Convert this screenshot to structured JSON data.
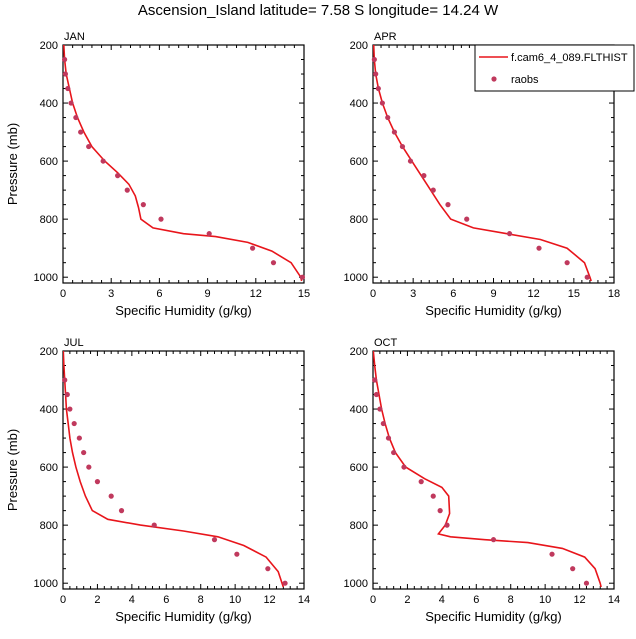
{
  "title": "Ascension_Island  latitude= 7.58 S longitude= 14.24 W",
  "colors": {
    "model": "#e8151b",
    "obs": "#c0395d",
    "axis": "#000000"
  },
  "legend": {
    "model_label": "f.cam6_4_089.FLTHIST",
    "obs_label": "raobs"
  },
  "chart_data": [
    {
      "type": "line",
      "panel": "JAN",
      "xlabel": "Specific Humidity (g/kg)",
      "ylabel": "Pressure (mb)",
      "xlim": [
        0,
        15
      ],
      "xticks": [
        0,
        3,
        6,
        9,
        12,
        15
      ],
      "ylim": [
        200,
        1020
      ],
      "yticks": [
        200,
        400,
        600,
        800,
        1000
      ],
      "y_inverted": true,
      "series": [
        {
          "name": "f.cam6_4_089.FLTHIST",
          "kind": "line",
          "points": [
            [
              0.05,
              200
            ],
            [
              0.1,
              250
            ],
            [
              0.2,
              300
            ],
            [
              0.4,
              350
            ],
            [
              0.6,
              400
            ],
            [
              0.9,
              450
            ],
            [
              1.3,
              500
            ],
            [
              1.8,
              550
            ],
            [
              2.6,
              600
            ],
            [
              3.4,
              640
            ],
            [
              4.1,
              680
            ],
            [
              4.5,
              720
            ],
            [
              4.7,
              760
            ],
            [
              4.85,
              800
            ],
            [
              5.6,
              830
            ],
            [
              7.5,
              850
            ],
            [
              9.5,
              860
            ],
            [
              11.5,
              880
            ],
            [
              13.0,
              910
            ],
            [
              14.2,
              950
            ],
            [
              14.8,
              1000
            ],
            [
              14.85,
              1013
            ]
          ]
        },
        {
          "name": "raobs",
          "kind": "scatter",
          "points": [
            [
              0.1,
              250
            ],
            [
              0.15,
              300
            ],
            [
              0.3,
              350
            ],
            [
              0.5,
              400
            ],
            [
              0.8,
              450
            ],
            [
              1.1,
              500
            ],
            [
              1.6,
              550
            ],
            [
              2.5,
              600
            ],
            [
              3.4,
              650
            ],
            [
              4.0,
              700
            ],
            [
              5.0,
              750
            ],
            [
              6.1,
              800
            ],
            [
              9.1,
              850
            ],
            [
              11.8,
              900
            ],
            [
              13.1,
              950
            ],
            [
              14.9,
              1000
            ]
          ]
        }
      ]
    },
    {
      "type": "line",
      "panel": "APR",
      "xlabel": "Specific Humidity (g/kg)",
      "ylabel": "",
      "xlim": [
        0,
        18
      ],
      "xticks": [
        0,
        3,
        6,
        9,
        12,
        15,
        18
      ],
      "ylim": [
        200,
        1020
      ],
      "yticks": [
        200,
        400,
        600,
        800,
        1000
      ],
      "y_inverted": true,
      "series": [
        {
          "name": "f.cam6_4_089.FLTHIST",
          "kind": "line",
          "points": [
            [
              0.05,
              200
            ],
            [
              0.1,
              250
            ],
            [
              0.2,
              300
            ],
            [
              0.4,
              350
            ],
            [
              0.7,
              400
            ],
            [
              1.1,
              450
            ],
            [
              1.6,
              500
            ],
            [
              2.2,
              550
            ],
            [
              2.9,
              600
            ],
            [
              3.6,
              650
            ],
            [
              4.3,
              700
            ],
            [
              5.0,
              750
            ],
            [
              5.8,
              800
            ],
            [
              7.5,
              830
            ],
            [
              10.0,
              850
            ],
            [
              12.5,
              870
            ],
            [
              14.5,
              900
            ],
            [
              15.8,
              950
            ],
            [
              16.2,
              1000
            ],
            [
              16.3,
              1013
            ]
          ]
        },
        {
          "name": "raobs",
          "kind": "scatter",
          "points": [
            [
              0.1,
              250
            ],
            [
              0.2,
              300
            ],
            [
              0.4,
              350
            ],
            [
              0.7,
              400
            ],
            [
              1.1,
              450
            ],
            [
              1.6,
              500
            ],
            [
              2.2,
              550
            ],
            [
              2.8,
              600
            ],
            [
              3.8,
              650
            ],
            [
              4.5,
              700
            ],
            [
              5.6,
              750
            ],
            [
              7.0,
              800
            ],
            [
              10.2,
              850
            ],
            [
              12.4,
              900
            ],
            [
              14.5,
              950
            ],
            [
              16.0,
              1000
            ]
          ]
        }
      ]
    },
    {
      "type": "line",
      "panel": "JUL",
      "xlabel": "Specific Humidity (g/kg)",
      "ylabel": "Pressure (mb)",
      "xlim": [
        0,
        14
      ],
      "xticks": [
        0,
        2,
        4,
        6,
        8,
        10,
        12,
        14
      ],
      "ylim": [
        200,
        1020
      ],
      "yticks": [
        200,
        400,
        600,
        800,
        1000
      ],
      "y_inverted": true,
      "series": [
        {
          "name": "f.cam6_4_089.FLTHIST",
          "kind": "line",
          "points": [
            [
              0.02,
              200
            ],
            [
              0.05,
              250
            ],
            [
              0.1,
              300
            ],
            [
              0.15,
              350
            ],
            [
              0.2,
              400
            ],
            [
              0.3,
              450
            ],
            [
              0.4,
              500
            ],
            [
              0.55,
              550
            ],
            [
              0.75,
              600
            ],
            [
              1.0,
              650
            ],
            [
              1.3,
              700
            ],
            [
              1.7,
              750
            ],
            [
              2.6,
              780
            ],
            [
              4.5,
              800
            ],
            [
              7.0,
              820
            ],
            [
              9.0,
              840
            ],
            [
              10.5,
              870
            ],
            [
              11.8,
              910
            ],
            [
              12.5,
              960
            ],
            [
              12.8,
              1013
            ]
          ]
        },
        {
          "name": "raobs",
          "kind": "scatter",
          "points": [
            [
              0.1,
              300
            ],
            [
              0.25,
              350
            ],
            [
              0.4,
              400
            ],
            [
              0.65,
              450
            ],
            [
              0.95,
              500
            ],
            [
              1.2,
              550
            ],
            [
              1.5,
              600
            ],
            [
              2.0,
              650
            ],
            [
              2.8,
              700
            ],
            [
              3.4,
              750
            ],
            [
              5.3,
              800
            ],
            [
              8.8,
              850
            ],
            [
              10.1,
              900
            ],
            [
              11.9,
              950
            ],
            [
              12.9,
              1000
            ]
          ]
        }
      ]
    },
    {
      "type": "line",
      "panel": "OCT",
      "xlabel": "Specific Humidity (g/kg)",
      "ylabel": "",
      "xlim": [
        0,
        14
      ],
      "xticks": [
        0,
        2,
        4,
        6,
        8,
        10,
        12,
        14
      ],
      "ylim": [
        200,
        1020
      ],
      "yticks": [
        200,
        400,
        600,
        800,
        1000
      ],
      "y_inverted": true,
      "series": [
        {
          "name": "f.cam6_4_089.FLTHIST",
          "kind": "line",
          "points": [
            [
              0.02,
              200
            ],
            [
              0.1,
              250
            ],
            [
              0.2,
              300
            ],
            [
              0.35,
              350
            ],
            [
              0.5,
              400
            ],
            [
              0.7,
              450
            ],
            [
              0.95,
              500
            ],
            [
              1.3,
              550
            ],
            [
              1.9,
              600
            ],
            [
              3.0,
              640
            ],
            [
              4.0,
              670
            ],
            [
              4.4,
              700
            ],
            [
              4.45,
              760
            ],
            [
              4.2,
              800
            ],
            [
              3.8,
              830
            ],
            [
              4.5,
              840
            ],
            [
              6.5,
              850
            ],
            [
              9.0,
              860
            ],
            [
              11.0,
              880
            ],
            [
              12.3,
              910
            ],
            [
              12.9,
              950
            ],
            [
              13.2,
              1000
            ],
            [
              13.25,
              1013
            ]
          ]
        },
        {
          "name": "raobs",
          "kind": "scatter",
          "points": [
            [
              0.1,
              300
            ],
            [
              0.2,
              350
            ],
            [
              0.4,
              400
            ],
            [
              0.6,
              450
            ],
            [
              0.9,
              500
            ],
            [
              1.2,
              550
            ],
            [
              1.8,
              600
            ],
            [
              2.8,
              650
            ],
            [
              3.5,
              700
            ],
            [
              3.9,
              750
            ],
            [
              4.3,
              800
            ],
            [
              7.0,
              850
            ],
            [
              10.4,
              900
            ],
            [
              11.6,
              950
            ],
            [
              12.4,
              1000
            ]
          ]
        }
      ]
    }
  ]
}
